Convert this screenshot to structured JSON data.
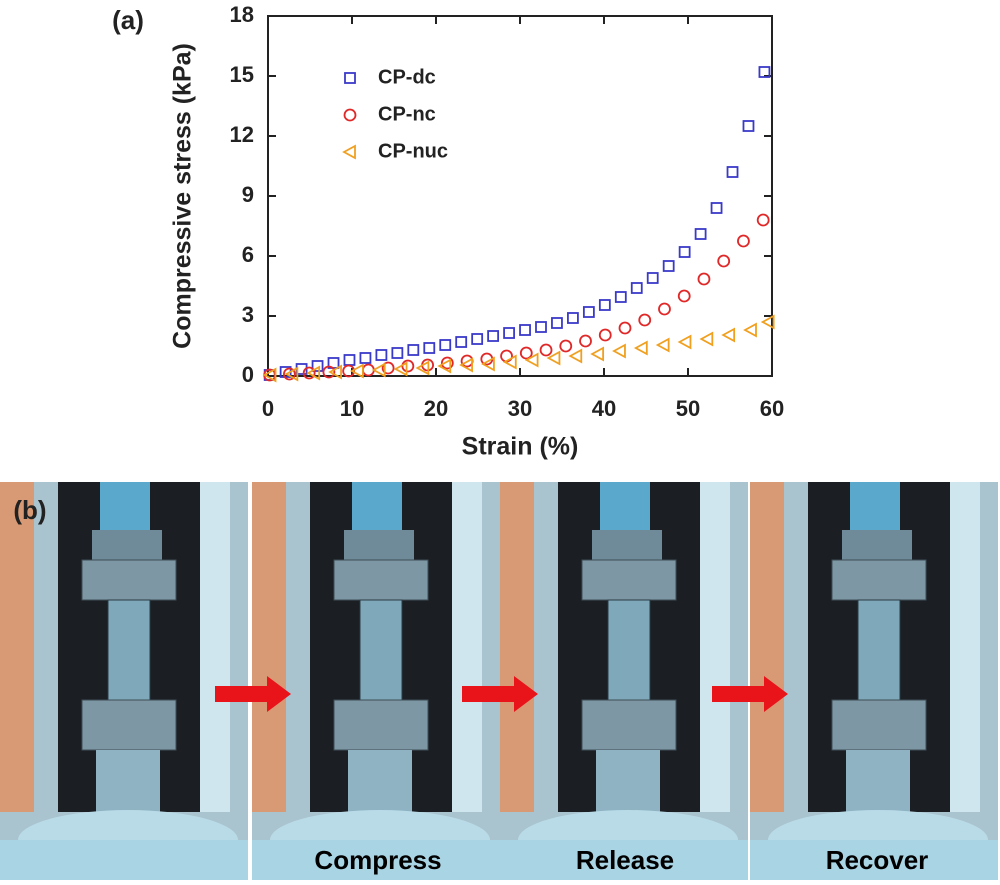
{
  "chart_data": {
    "type": "scatter",
    "panel_label": "(a)",
    "xlabel": "Strain (%)",
    "ylabel": "Compressive stress (kPa)",
    "xlim": [
      0,
      60
    ],
    "xticks": [
      0,
      10,
      20,
      30,
      40,
      50,
      60
    ],
    "ylim": [
      0,
      18
    ],
    "yticks": [
      0,
      3,
      6,
      9,
      12,
      15,
      18
    ],
    "legend": "upper left",
    "series": [
      {
        "name": "CP-dc",
        "color": "#3a3ac8",
        "marker": "square",
        "x": [
          0.2,
          2.1,
          4.0,
          5.9,
          7.8,
          9.7,
          11.6,
          13.5,
          15.4,
          17.3,
          19.2,
          21.1,
          23.0,
          24.9,
          26.8,
          28.7,
          30.6,
          32.5,
          34.4,
          36.3,
          38.2,
          40.1,
          42.0,
          43.9,
          45.8,
          47.7,
          49.6,
          51.5,
          53.4,
          55.3,
          57.2,
          59.1
        ],
        "values": [
          0.05,
          0.2,
          0.35,
          0.5,
          0.65,
          0.8,
          0.9,
          1.05,
          1.15,
          1.3,
          1.4,
          1.55,
          1.7,
          1.85,
          2.0,
          2.15,
          2.3,
          2.45,
          2.65,
          2.9,
          3.2,
          3.55,
          3.95,
          4.4,
          4.9,
          5.5,
          6.2,
          7.1,
          8.4,
          10.2,
          12.5,
          15.2
        ]
      },
      {
        "name": "CP-nc",
        "color": "#e02828",
        "marker": "circle",
        "x": [
          0.2,
          2.55,
          4.9,
          7.25,
          9.6,
          11.95,
          14.3,
          16.65,
          19.0,
          21.35,
          23.7,
          26.05,
          28.4,
          30.75,
          33.1,
          35.45,
          37.8,
          40.15,
          42.5,
          44.85,
          47.2,
          49.55,
          51.9,
          54.25,
          56.6,
          58.95
        ],
        "values": [
          0.05,
          0.1,
          0.15,
          0.2,
          0.25,
          0.3,
          0.4,
          0.5,
          0.55,
          0.65,
          0.75,
          0.85,
          1.0,
          1.15,
          1.3,
          1.5,
          1.75,
          2.05,
          2.4,
          2.8,
          3.35,
          4.0,
          4.85,
          5.75,
          6.75,
          7.8
        ]
      },
      {
        "name": "CP-nuc",
        "color": "#f0a020",
        "marker": "triangle-left",
        "x": [
          0.3,
          2.9,
          5.5,
          8.1,
          10.7,
          13.3,
          15.9,
          18.5,
          21.1,
          23.7,
          26.3,
          28.9,
          31.5,
          34.1,
          36.7,
          39.3,
          41.9,
          44.5,
          47.1,
          49.7,
          52.3,
          54.9,
          57.5,
          59.6
        ],
        "values": [
          0.05,
          0.1,
          0.15,
          0.2,
          0.25,
          0.3,
          0.35,
          0.4,
          0.5,
          0.55,
          0.6,
          0.7,
          0.8,
          0.9,
          1.0,
          1.1,
          1.25,
          1.4,
          1.55,
          1.7,
          1.85,
          2.05,
          2.3,
          2.7
        ]
      }
    ]
  },
  "photos": {
    "panel_label": "(b)",
    "captions": [
      "Compress",
      "Release",
      "Recover"
    ]
  }
}
